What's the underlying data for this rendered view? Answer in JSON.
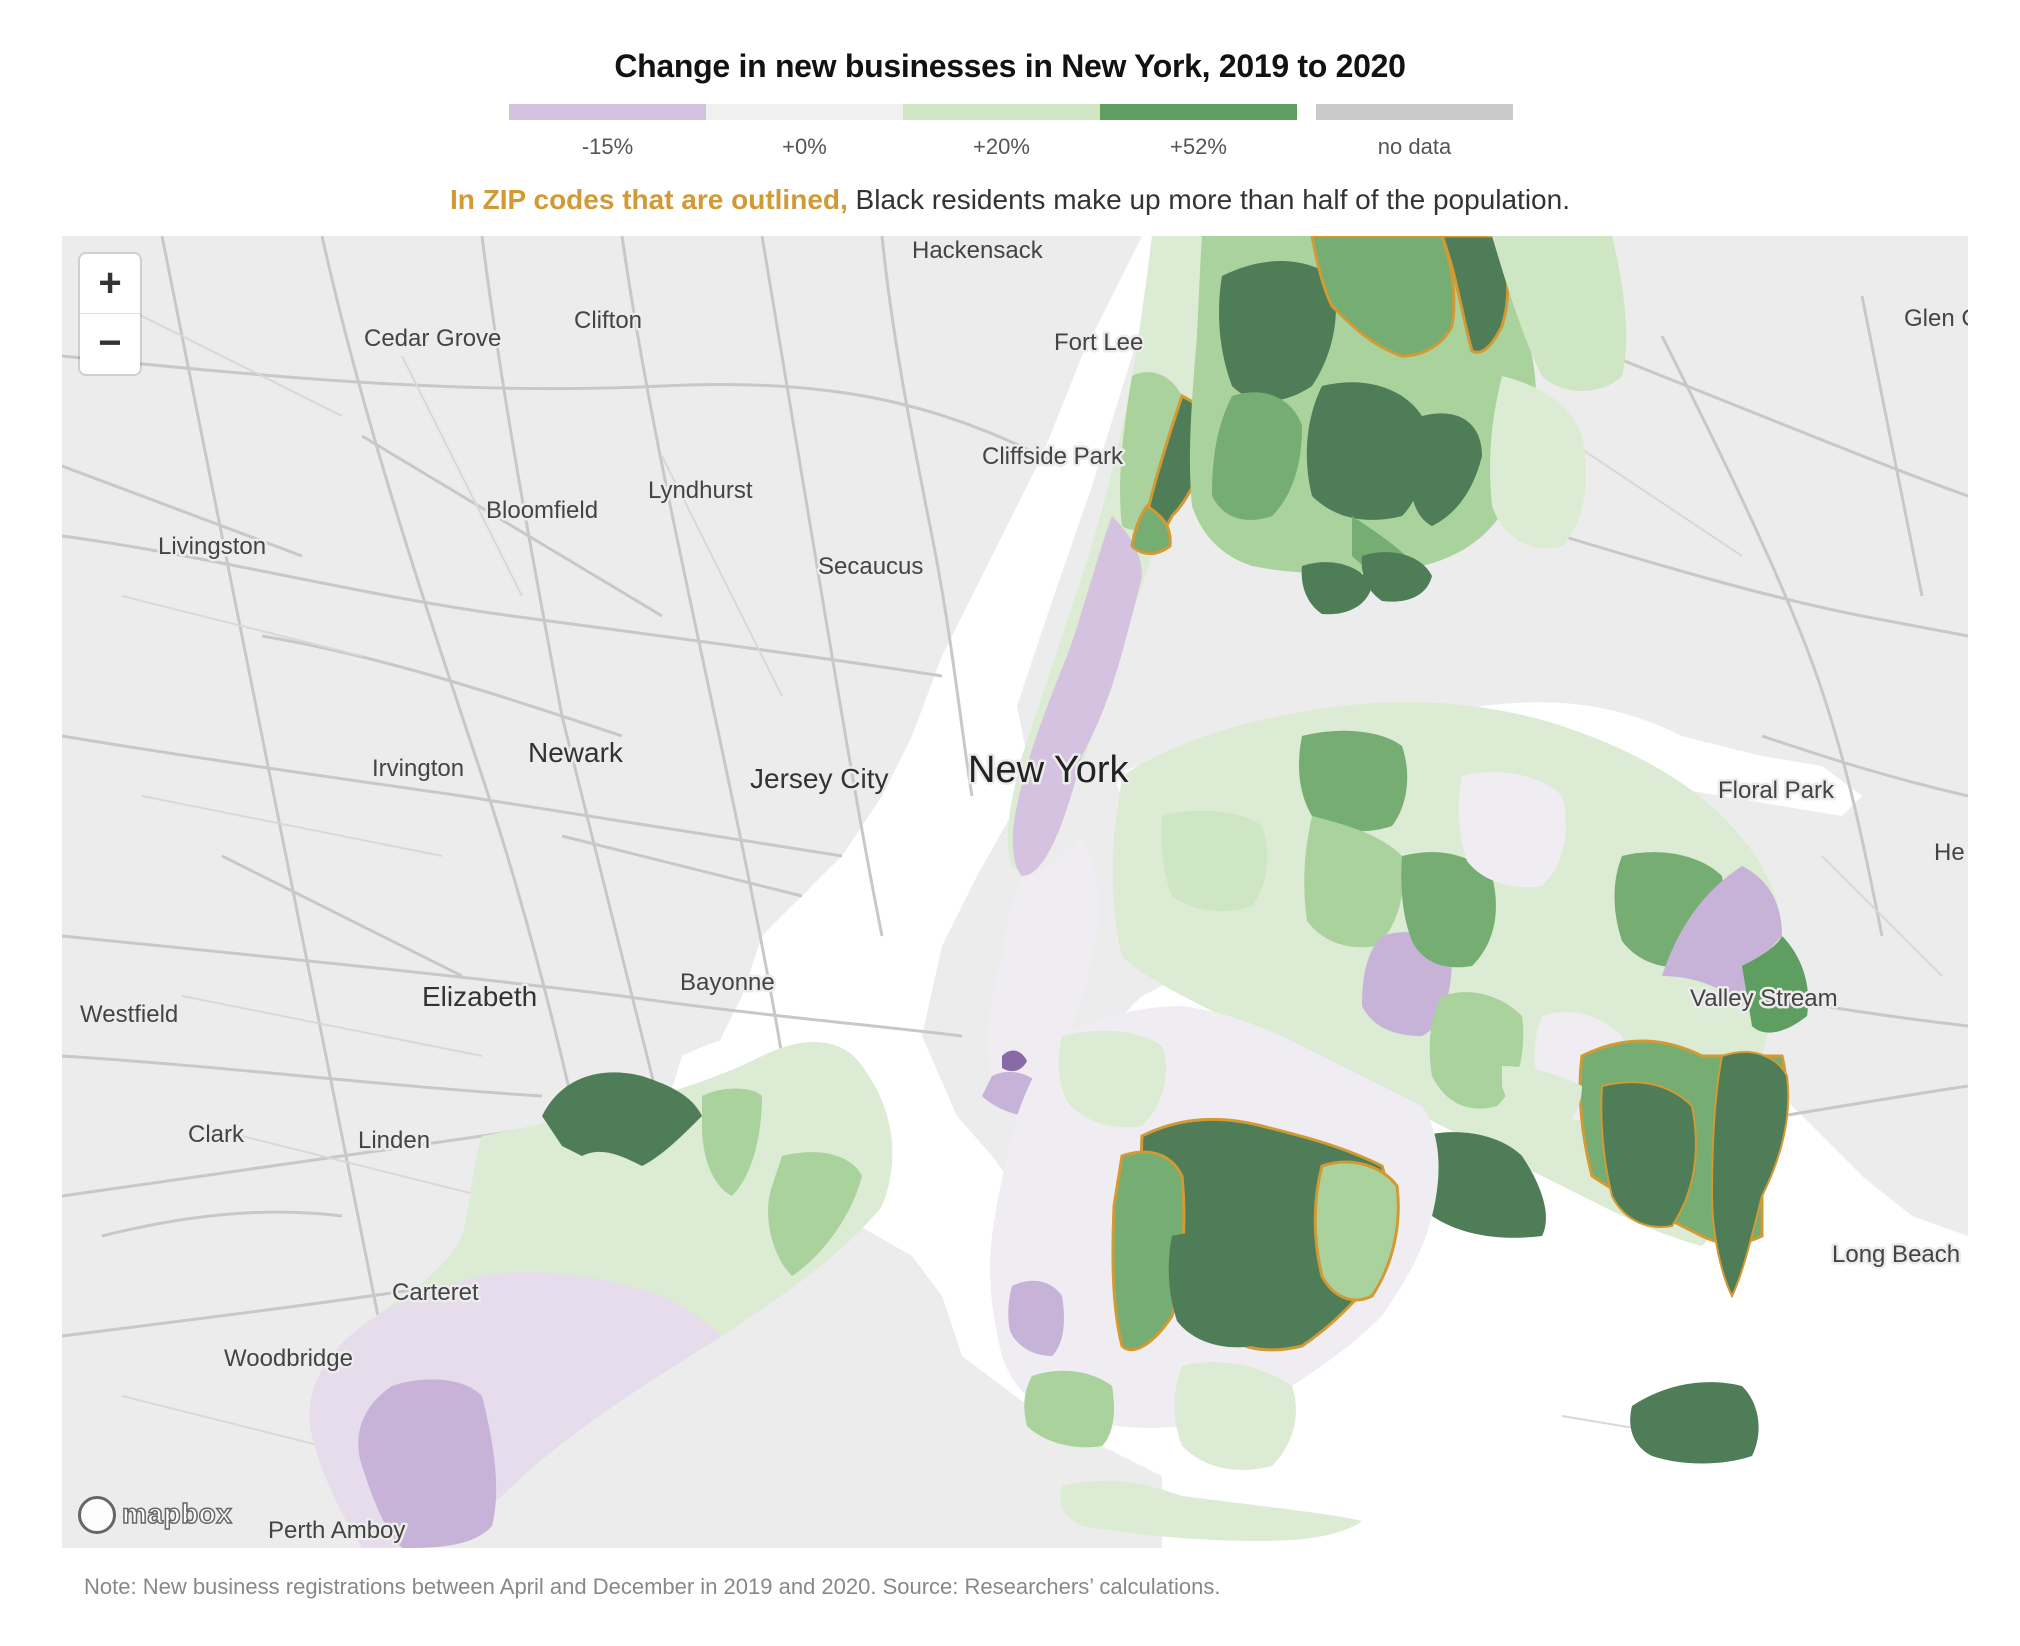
{
  "title": "Change in new businesses in New York, 2019 to 2020",
  "legend": {
    "items": [
      {
        "label": "-15%",
        "color": "#d5c2e0"
      },
      {
        "label": "+0%",
        "color": "#f0f0f0"
      },
      {
        "label": "+20%",
        "color": "#cfe6c5"
      },
      {
        "label": "+52%",
        "color": "#5f9e61"
      },
      {
        "label": "no data",
        "color": "#c9c9c9"
      }
    ]
  },
  "subtitle": {
    "highlight": "In ZIP codes that are outlined,",
    "rest": " Black residents make up more than half of the population."
  },
  "colors": {
    "outline": "#d29a35",
    "purple_dark": "#8a6aa6",
    "purple": "#c7b2d8",
    "purple_light": "#e6dcec",
    "neutral": "#efedf1",
    "green_light": "#dcebd3",
    "green_mid": "#a9d29c",
    "green": "#75ad72",
    "green_dark": "#4f7d58",
    "water": "#ffffff",
    "land": "#ececec",
    "road": "#c8c8c8"
  },
  "map": {
    "zoom_in_label": "+",
    "zoom_out_label": "−",
    "attribution": "mapbox",
    "places": [
      {
        "name": "Hackensack"
      },
      {
        "name": "Clifton"
      },
      {
        "name": "Cedar Grove"
      },
      {
        "name": "Fort Lee"
      },
      {
        "name": "Cliffside Park"
      },
      {
        "name": "Lyndhurst"
      },
      {
        "name": "Bloomfield"
      },
      {
        "name": "Livingston"
      },
      {
        "name": "Secaucus"
      },
      {
        "name": "Newark"
      },
      {
        "name": "Irvington"
      },
      {
        "name": "Jersey City"
      },
      {
        "name": "New York"
      },
      {
        "name": "Floral Park"
      },
      {
        "name": "Glen C"
      },
      {
        "name": "He"
      },
      {
        "name": "Valley Stream"
      },
      {
        "name": "Bayonne"
      },
      {
        "name": "Elizabeth"
      },
      {
        "name": "Westfield"
      },
      {
        "name": "Clark"
      },
      {
        "name": "Linden"
      },
      {
        "name": "Carteret"
      },
      {
        "name": "Woodbridge"
      },
      {
        "name": "Perth Amboy"
      },
      {
        "name": "Long Beach"
      }
    ]
  },
  "note": "Note: New business registrations between April and December in 2019 and 2020. Source: Researchers’ calculations."
}
